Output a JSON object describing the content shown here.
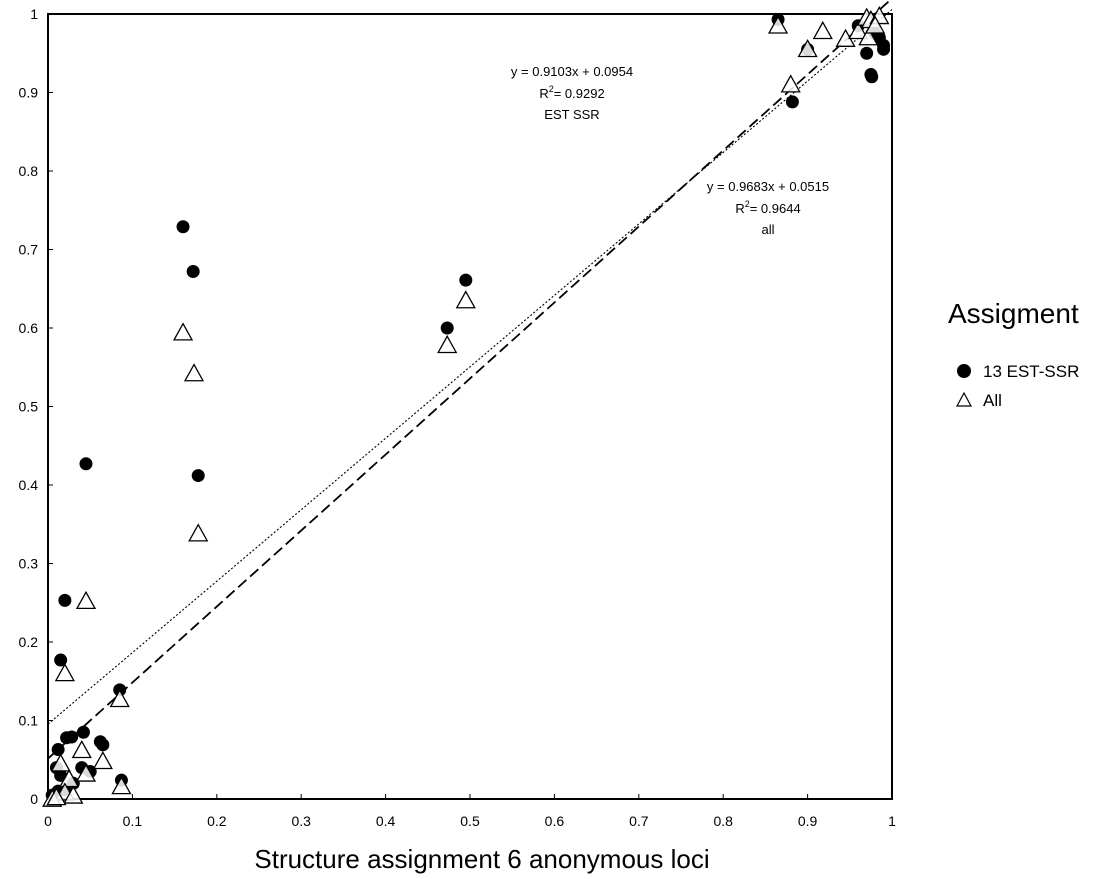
{
  "chart_data": {
    "type": "scatter",
    "xlabel": "Structure assignment 6 anonymous loci",
    "ylabel": "",
    "xlim": [
      0,
      1
    ],
    "ylim": [
      0,
      1
    ],
    "x_ticks": [
      "0",
      "0.1",
      "0.2",
      "0.3",
      "0.4",
      "0.5",
      "0.6",
      "0.7",
      "0.8",
      "0.9",
      "1"
    ],
    "y_ticks": [
      "0",
      "0.1",
      "0.2",
      "0.3",
      "0.4",
      "0.5",
      "0.6",
      "0.7",
      "0.8",
      "0.9",
      "1"
    ],
    "grid": false,
    "legend": {
      "title": "Assigment",
      "position": "right",
      "entries": [
        "13 EST-SSR",
        "All"
      ]
    },
    "series": [
      {
        "name": "13 EST-SSR",
        "marker": "filled-circle",
        "color": "#000000",
        "points": [
          [
            0.015,
            0.177
          ],
          [
            0.02,
            0.253
          ],
          [
            0.045,
            0.427
          ],
          [
            0.16,
            0.729
          ],
          [
            0.172,
            0.672
          ],
          [
            0.178,
            0.412
          ],
          [
            0.473,
            0.6
          ],
          [
            0.495,
            0.661
          ],
          [
            0.085,
            0.139
          ],
          [
            0.012,
            0.063
          ],
          [
            0.022,
            0.078
          ],
          [
            0.028,
            0.079
          ],
          [
            0.042,
            0.085
          ],
          [
            0.062,
            0.073
          ],
          [
            0.065,
            0.069
          ],
          [
            0.04,
            0.04
          ],
          [
            0.05,
            0.035
          ],
          [
            0.01,
            0.04
          ],
          [
            0.015,
            0.03
          ],
          [
            0.03,
            0.02
          ],
          [
            0.087,
            0.024
          ],
          [
            0.005,
            0.005
          ],
          [
            0.012,
            0.01
          ],
          [
            0.02,
            0.012
          ],
          [
            0.865,
            0.993
          ],
          [
            0.882,
            0.888
          ],
          [
            0.9,
            0.955
          ],
          [
            0.97,
            0.95
          ],
          [
            0.975,
            0.923
          ],
          [
            0.976,
            0.92
          ],
          [
            0.985,
            0.97
          ],
          [
            0.99,
            0.955
          ],
          [
            0.99,
            0.96
          ],
          [
            0.96,
            0.985
          ],
          [
            0.98,
            0.975
          ]
        ]
      },
      {
        "name": "All",
        "marker": "open-triangle",
        "color": "#000000",
        "points": [
          [
            0.02,
            0.16
          ],
          [
            0.045,
            0.252
          ],
          [
            0.16,
            0.594
          ],
          [
            0.173,
            0.542
          ],
          [
            0.178,
            0.338
          ],
          [
            0.473,
            0.578
          ],
          [
            0.495,
            0.635
          ],
          [
            0.085,
            0.127
          ],
          [
            0.015,
            0.045
          ],
          [
            0.04,
            0.062
          ],
          [
            0.065,
            0.048
          ],
          [
            0.045,
            0.032
          ],
          [
            0.025,
            0.025
          ],
          [
            0.087,
            0.016
          ],
          [
            0.02,
            0.008
          ],
          [
            0.03,
            0.004
          ],
          [
            0.005,
            0.0
          ],
          [
            0.01,
            0.002
          ],
          [
            0.865,
            0.985
          ],
          [
            0.88,
            0.91
          ],
          [
            0.9,
            0.955
          ],
          [
            0.918,
            0.978
          ],
          [
            0.945,
            0.968
          ],
          [
            0.96,
            0.978
          ],
          [
            0.97,
            0.995
          ],
          [
            0.975,
            0.992
          ],
          [
            0.985,
            0.997
          ],
          [
            0.972,
            0.97
          ],
          [
            0.98,
            0.985
          ]
        ]
      }
    ],
    "trendlines": [
      {
        "label": "EST SSR",
        "slope": 0.9103,
        "intercept": 0.0954,
        "style": "dotted",
        "equation": "y = 0.9103x + 0.0954",
        "r2_text": "= 0.9292"
      },
      {
        "label": "all",
        "slope": 0.9683,
        "intercept": 0.0515,
        "style": "dashed",
        "equation": "y = 0.9683x + 0.0515",
        "r2_text": "= 0.9644"
      }
    ]
  }
}
